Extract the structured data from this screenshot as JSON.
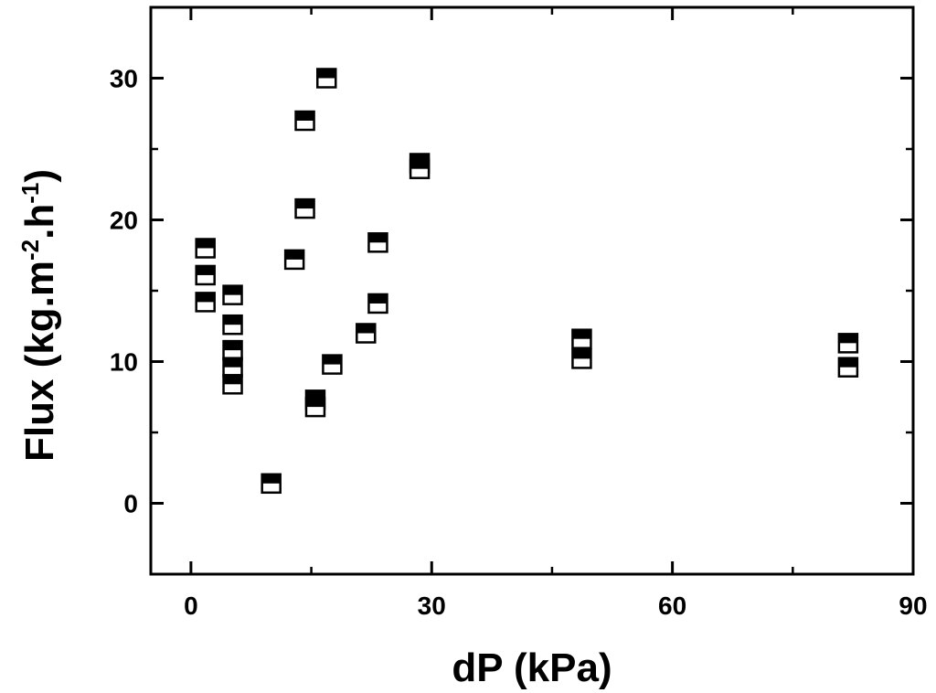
{
  "chart_data": {
    "type": "scatter",
    "xlabel": "dP (kPa)",
    "ylabel": {
      "prefix": "Flux (kg.m",
      "sup1": "-2",
      "mid": ".h",
      "sup2": "-1",
      "suffix": ")"
    },
    "xlim": [
      -5,
      90
    ],
    "ylim": [
      -5,
      35
    ],
    "x_ticks": [
      0,
      30,
      60,
      90
    ],
    "y_ticks": [
      0,
      10,
      20,
      30
    ],
    "x_tick_labels": [
      "0",
      "30",
      "60",
      "90"
    ],
    "y_tick_labels": [
      "0",
      "10",
      "20",
      "30"
    ],
    "x_minor_step": 15,
    "y_minor_step": 5,
    "marker": "half-filled-square",
    "marker_color": "#000000",
    "grid": false,
    "points": [
      {
        "x": 1.8,
        "y": 18.0
      },
      {
        "x": 1.8,
        "y": 16.1
      },
      {
        "x": 1.8,
        "y": 14.2
      },
      {
        "x": 5.2,
        "y": 14.7
      },
      {
        "x": 5.2,
        "y": 12.6
      },
      {
        "x": 5.2,
        "y": 10.8
      },
      {
        "x": 5.2,
        "y": 9.6
      },
      {
        "x": 5.2,
        "y": 8.4
      },
      {
        "x": 10.0,
        "y": 1.4
      },
      {
        "x": 12.9,
        "y": 17.2
      },
      {
        "x": 14.2,
        "y": 27.0
      },
      {
        "x": 14.2,
        "y": 20.8
      },
      {
        "x": 15.5,
        "y": 7.3
      },
      {
        "x": 15.5,
        "y": 6.8
      },
      {
        "x": 16.9,
        "y": 30.0
      },
      {
        "x": 17.6,
        "y": 9.8
      },
      {
        "x": 21.8,
        "y": 12.0
      },
      {
        "x": 23.3,
        "y": 18.4
      },
      {
        "x": 23.3,
        "y": 14.1
      },
      {
        "x": 28.5,
        "y": 24.0
      },
      {
        "x": 28.5,
        "y": 23.6
      },
      {
        "x": 48.7,
        "y": 11.6
      },
      {
        "x": 48.7,
        "y": 10.2
      },
      {
        "x": 81.9,
        "y": 11.3
      },
      {
        "x": 81.9,
        "y": 9.6
      }
    ]
  }
}
